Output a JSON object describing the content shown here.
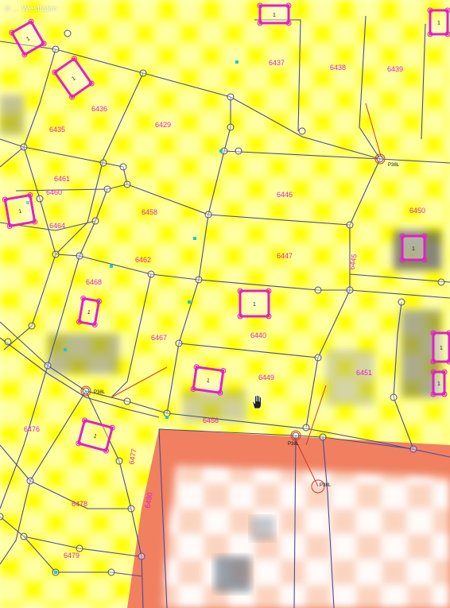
{
  "watermark": "© ... Westfalen",
  "colors": {
    "parcel_fill": "#ffff00",
    "checker_light": "#ffffff",
    "road_fill": "#f08060",
    "road_light": "#fde3d6",
    "boundary": "#4a4a9a",
    "label": "#e020c8",
    "building": "#e020c8",
    "dark_patch": "#555566",
    "cyan_mark": "#19c8d0",
    "red_line": "#d03a20"
  },
  "parcel_labels": [
    "6437",
    "6438",
    "6439",
    "6436",
    "6435",
    "6429",
    "6461",
    "6460",
    "6446",
    "6450",
    "6458",
    "6464",
    "6462",
    "6447",
    "6445",
    "6468",
    "6467",
    "6440",
    "6449",
    "6451",
    "6456",
    "6476",
    "6477",
    "6478",
    "6479",
    "6480"
  ],
  "building_labels": [
    "1",
    "1",
    "1",
    "1",
    "1",
    "1",
    "1",
    "1",
    "1",
    "1",
    "1",
    "1"
  ],
  "point_labels": [
    "P38L",
    "P38L",
    "P38L",
    "P38L"
  ],
  "icons": [
    "hand-cursor-icon"
  ]
}
